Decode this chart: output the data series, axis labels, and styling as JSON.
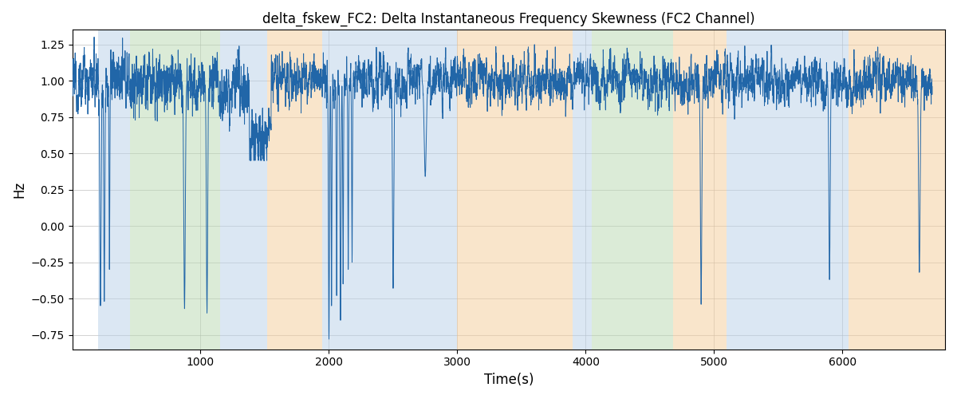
{
  "title": "delta_fskew_FC2: Delta Instantaneous Frequency Skewness (FC2 Channel)",
  "xlabel": "Time(s)",
  "ylabel": "Hz",
  "xlim": [
    0,
    6800
  ],
  "ylim": [
    -0.85,
    1.35
  ],
  "line_color": "#2166a8",
  "line_width": 0.7,
  "bg_color": "white",
  "grid_color": "#b0b0b0",
  "regions": [
    {
      "xmin": 200,
      "xmax": 450,
      "color": "#b8d0e8",
      "alpha": 0.5
    },
    {
      "xmin": 450,
      "xmax": 1150,
      "color": "#b8d8b0",
      "alpha": 0.5
    },
    {
      "xmin": 1150,
      "xmax": 1520,
      "color": "#b8d0e8",
      "alpha": 0.5
    },
    {
      "xmin": 1520,
      "xmax": 1950,
      "color": "#f5cc98",
      "alpha": 0.5
    },
    {
      "xmin": 1950,
      "xmax": 3000,
      "color": "#b8d0e8",
      "alpha": 0.5
    },
    {
      "xmin": 3000,
      "xmax": 3900,
      "color": "#f5cc98",
      "alpha": 0.5
    },
    {
      "xmin": 3900,
      "xmax": 4050,
      "color": "#b8d0e8",
      "alpha": 0.5
    },
    {
      "xmin": 4050,
      "xmax": 4680,
      "color": "#b8d8b0",
      "alpha": 0.5
    },
    {
      "xmin": 4680,
      "xmax": 5100,
      "color": "#f5cc98",
      "alpha": 0.5
    },
    {
      "xmin": 5100,
      "xmax": 6050,
      "color": "#b8d0e8",
      "alpha": 0.5
    },
    {
      "xmin": 6050,
      "xmax": 6800,
      "color": "#f5cc98",
      "alpha": 0.5
    }
  ],
  "seed": 12345,
  "n_points": 6700
}
